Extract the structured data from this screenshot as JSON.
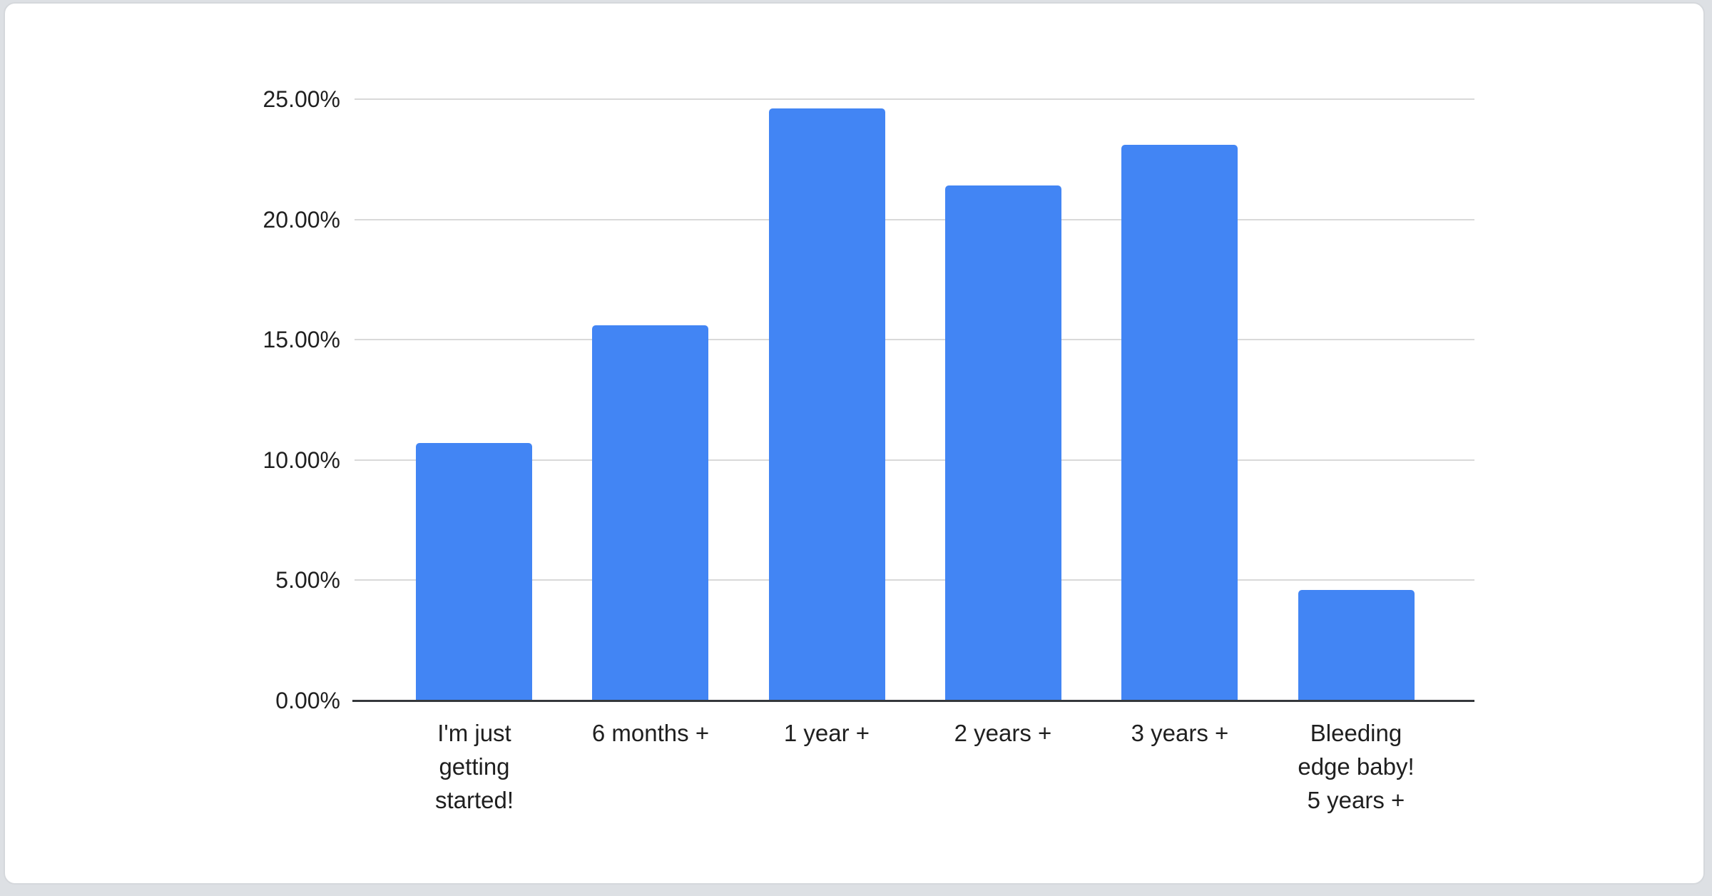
{
  "page": {
    "background_color": "#dde0e4",
    "card_background_color": "#ffffff",
    "card_border_color": "#d5d8dc"
  },
  "chart_data": {
    "type": "bar",
    "title": "",
    "xlabel": "",
    "ylabel": "",
    "categories": [
      "I'm just getting started!",
      "6 months +",
      "1 year +",
      "2 years +",
      "3 years +",
      "Bleeding edge baby! 5 years +"
    ],
    "category_lines": [
      [
        "I'm just",
        "getting",
        "started!"
      ],
      [
        "6 months +"
      ],
      [
        "1 year +"
      ],
      [
        "2 years +"
      ],
      [
        "3 years +"
      ],
      [
        "Bleeding",
        "edge baby!",
        "5 years +"
      ]
    ],
    "values": [
      10.7,
      15.6,
      24.6,
      21.4,
      23.1,
      4.6
    ],
    "value_unit": "%",
    "ylim": [
      0,
      25
    ],
    "ytick_step": 5,
    "ytick_labels": [
      "0.00%",
      "5.00%",
      "10.00%",
      "15.00%",
      "20.00%",
      "25.00%"
    ],
    "grid": true,
    "legend": "none",
    "bar_color": "#4285F4",
    "gridline_color": "#d9d9d9",
    "axis_line_color": "#35383b",
    "label_color": "#1f1f1f"
  }
}
